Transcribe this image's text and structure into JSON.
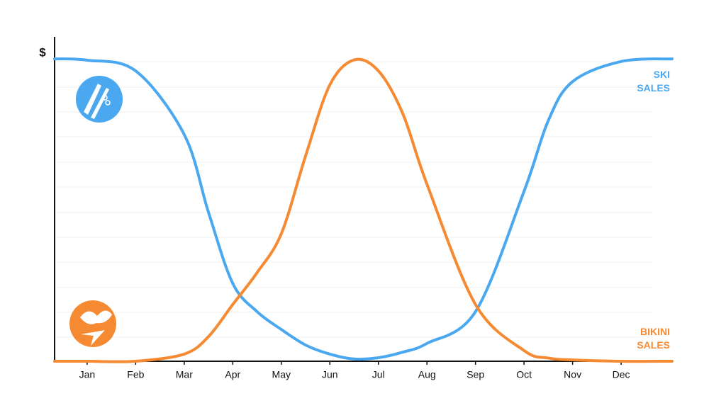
{
  "chart_data": {
    "type": "line",
    "y_label": "$",
    "x": [
      0.33,
      1,
      2,
      3,
      3.5,
      4,
      4.5,
      5,
      5.5,
      6,
      6.5,
      7,
      7.5,
      8,
      9,
      10,
      10.5,
      11,
      12,
      13.05
    ],
    "xlim": [
      0.33,
      13.05
    ],
    "xticks": [
      {
        "value": 1,
        "label": "Jan"
      },
      {
        "value": 2,
        "label": "Feb"
      },
      {
        "value": 3,
        "label": "Mar"
      },
      {
        "value": 4,
        "label": "Apr"
      },
      {
        "value": 5,
        "label": "May"
      },
      {
        "value": 6,
        "label": "Jun"
      },
      {
        "value": 7,
        "label": "Jul"
      },
      {
        "value": 8,
        "label": "Aug"
      },
      {
        "value": 9,
        "label": "Sep"
      },
      {
        "value": 10,
        "label": "Oct"
      },
      {
        "value": 11,
        "label": "Nov"
      },
      {
        "value": 12,
        "label": "Dec"
      }
    ],
    "ylim": [
      0,
      100
    ],
    "series": [
      {
        "name": "SKI SALES",
        "color": "#4aa8f0",
        "values": [
          93.2,
          92.8,
          89.5,
          69.9,
          45.9,
          24,
          15.3,
          9.8,
          5,
          2.2,
          0.7,
          1.1,
          2.8,
          5.5,
          15.3,
          52.4,
          74.2,
          86.2,
          92.4,
          93.2
        ]
      },
      {
        "name": "BIKINI SALES",
        "color": "#f58a32",
        "values": [
          0,
          0,
          0,
          2.2,
          7.6,
          17.5,
          27.3,
          39.3,
          63.3,
          85.2,
          92.9,
          89.5,
          76.4,
          54.6,
          17.5,
          3.3,
          1,
          0.4,
          0,
          0
        ]
      }
    ]
  }
}
